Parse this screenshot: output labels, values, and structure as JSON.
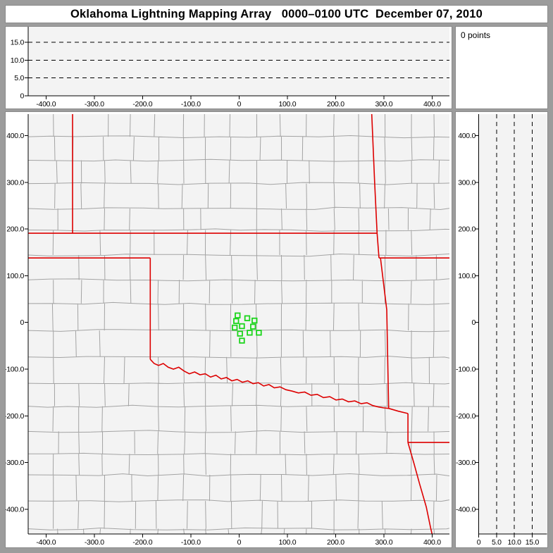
{
  "window": {
    "title": "Oklahoma Lightning Mapping Array   0000–0100 UTC  December 07, 2010"
  },
  "status": {
    "points_label": "0 points"
  },
  "colors": {
    "frame": "#9c9c9c",
    "panel_bg": "#ffffff",
    "panel_border": "#8a8a8a",
    "plot_bg": "#f3f3f3",
    "county_line": "#a3a3a3",
    "state_border": "#dd0000",
    "station": "#1bd51b",
    "axis": "#000000"
  },
  "chart_data": {
    "type": "scatter",
    "title": "Oklahoma Lightning Mapping Array",
    "time_range": "0000–0100 UTC",
    "date": "December 07, 2010",
    "points_count": 0,
    "legend_position": "top-right",
    "grid": "dashed altitude gridlines only",
    "x_axis": {
      "label_values": [
        -400,
        -300,
        -200,
        -100,
        0,
        100,
        200,
        300,
        400
      ],
      "labels": [
        "-400.0",
        "-300.0",
        "-200.0",
        "-100.0",
        "0",
        "100.0",
        "200.0",
        "300.0",
        "400.0"
      ],
      "range_km": [
        -437,
        436
      ]
    },
    "y_axis": {
      "label_values": [
        400,
        300,
        200,
        100,
        0,
        -100,
        -200,
        -300,
        -400
      ],
      "labels": [
        "400.0",
        "300.0",
        "200.0",
        "100.0",
        "0",
        "-100.0",
        "-200.0",
        "-300.0",
        "-400.0"
      ],
      "range_km": [
        -453,
        446
      ]
    },
    "altitude_axis": {
      "label_values": [
        0,
        5,
        10,
        15
      ],
      "labels": [
        "0",
        "5.0",
        "10.0",
        "15.0"
      ],
      "range_km": [
        0,
        19.3
      ],
      "dashed_gridlines_km": [
        5,
        10,
        15
      ]
    },
    "alt_vs_ew": {
      "points": []
    },
    "alt_vs_ns": {
      "points": []
    },
    "plan_view": {
      "points": [],
      "stations_km": [
        [
          -3,
          15
        ],
        [
          17,
          9
        ],
        [
          32,
          4
        ],
        [
          -6,
          3
        ],
        [
          6,
          -8
        ],
        [
          -9,
          -11
        ],
        [
          29,
          -9
        ],
        [
          22,
          -22
        ],
        [
          2,
          -24
        ],
        [
          41,
          -22
        ],
        [
          6,
          -39
        ]
      ],
      "state_borders_km": [
        [
          [
            -345,
            446
          ],
          [
            -345,
            191
          ]
        ],
        [
          [
            -437,
            191
          ],
          [
            286,
            191
          ]
        ],
        [
          [
            275,
            446
          ],
          [
            281,
            300
          ],
          [
            286,
            191
          ]
        ],
        [
          [
            286,
            191
          ],
          [
            290,
            138
          ]
        ],
        [
          [
            290,
            138
          ],
          [
            436,
            138
          ]
        ],
        [
          [
            293,
            138
          ],
          [
            306,
            27
          ],
          [
            310,
            -184
          ]
        ],
        [
          [
            -437,
            138
          ],
          [
            -184,
            138
          ]
        ],
        [
          [
            -184,
            138
          ],
          [
            -184,
            -79
          ]
        ],
        [
          [
            -184,
            -79
          ],
          [
            -176,
            -88
          ],
          [
            -167,
            -92
          ],
          [
            -157,
            -88
          ],
          [
            -147,
            -96
          ],
          [
            -136,
            -100
          ],
          [
            -125,
            -96
          ],
          [
            -114,
            -104
          ],
          [
            -103,
            -110
          ],
          [
            -92,
            -106
          ],
          [
            -81,
            -112
          ],
          [
            -70,
            -110
          ],
          [
            -59,
            -117
          ],
          [
            -48,
            -113
          ],
          [
            -37,
            -121
          ],
          [
            -26,
            -118
          ],
          [
            -15,
            -125
          ],
          [
            -4,
            -122
          ],
          [
            7,
            -128
          ],
          [
            18,
            -125
          ],
          [
            29,
            -131
          ],
          [
            40,
            -129
          ],
          [
            51,
            -136
          ],
          [
            62,
            -133
          ],
          [
            73,
            -140
          ],
          [
            85,
            -138
          ],
          [
            97,
            -144
          ],
          [
            110,
            -147
          ],
          [
            123,
            -151
          ],
          [
            136,
            -149
          ],
          [
            149,
            -156
          ],
          [
            162,
            -154
          ],
          [
            175,
            -161
          ],
          [
            188,
            -159
          ],
          [
            201,
            -166
          ],
          [
            214,
            -164
          ],
          [
            227,
            -170
          ],
          [
            240,
            -168
          ],
          [
            253,
            -174
          ],
          [
            265,
            -172
          ],
          [
            277,
            -178
          ],
          [
            289,
            -181
          ],
          [
            300,
            -183
          ],
          [
            310,
            -184
          ]
        ],
        [
          [
            310,
            -184
          ],
          [
            330,
            -190
          ],
          [
            350,
            -195
          ]
        ],
        [
          [
            350,
            -195
          ],
          [
            350,
            -257
          ]
        ],
        [
          [
            350,
            -257
          ],
          [
            436,
            -257
          ]
        ],
        [
          [
            350,
            -257
          ],
          [
            362,
            -300
          ],
          [
            374,
            -345
          ],
          [
            388,
            -395
          ],
          [
            397,
            -440
          ],
          [
            400,
            -453
          ]
        ]
      ]
    }
  }
}
